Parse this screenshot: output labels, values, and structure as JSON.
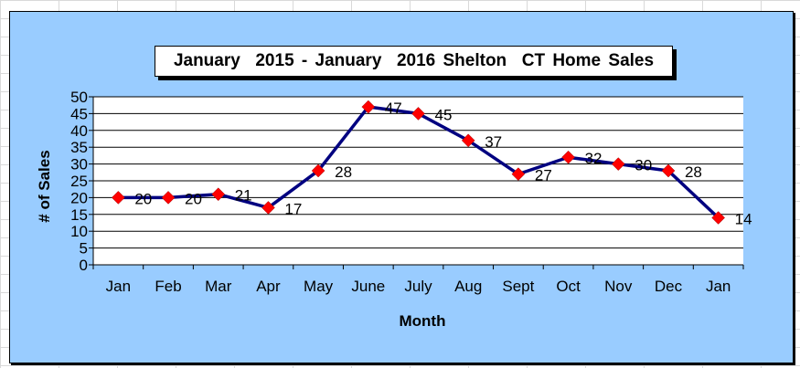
{
  "chart_data": {
    "type": "line",
    "title": "January  2015 - January  2016 Shelton  CT Home Sales",
    "xlabel": "Month",
    "ylabel": "# of Sales",
    "categories": [
      "Jan",
      "Feb",
      "Mar",
      "Apr",
      "May",
      "June",
      "July",
      "Aug",
      "Sept",
      "Oct",
      "Nov",
      "Dec",
      "Jan"
    ],
    "values": [
      20,
      20,
      21,
      17,
      28,
      47,
      45,
      37,
      27,
      32,
      30,
      28,
      14
    ],
    "ylim": [
      0,
      50
    ],
    "ytick_step": 5,
    "grid": true,
    "legend": "none",
    "colors": {
      "chart_background": "#99ccff",
      "plot_background": "#ffffff",
      "line": "#000080",
      "marker": "#ff0000"
    }
  }
}
